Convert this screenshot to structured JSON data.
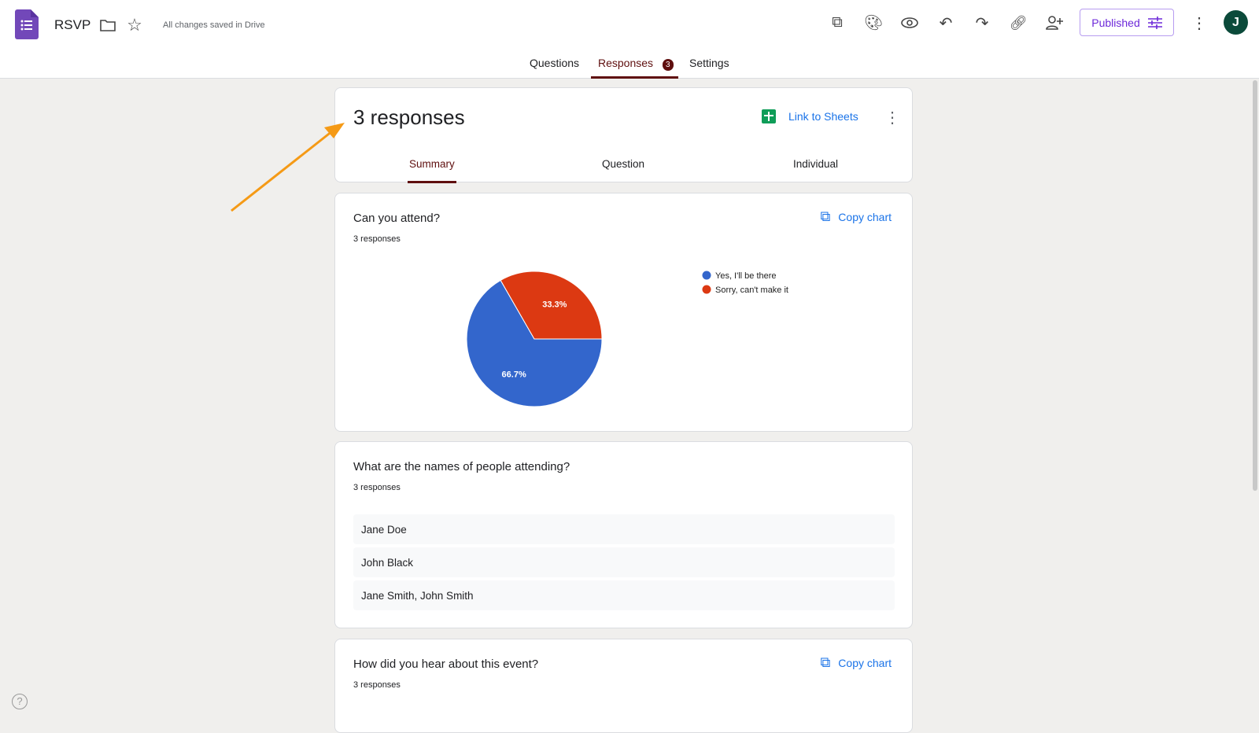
{
  "header": {
    "title": "RSVP",
    "save_status": "All changes saved in Drive",
    "publish_label": "Published",
    "avatar_letter": "J",
    "icons": [
      "add-ons-icon",
      "palette-icon",
      "preview-eye-icon",
      "undo-icon",
      "redo-icon",
      "link-icon",
      "add-collaborator-icon"
    ]
  },
  "tabs": [
    {
      "label": "Questions"
    },
    {
      "label": "Responses",
      "badge": "3",
      "active": true
    },
    {
      "label": "Settings"
    }
  ],
  "summary": {
    "title": "3 responses",
    "link_sheets": "Link to Sheets",
    "subtabs": [
      {
        "label": "Summary",
        "active": true
      },
      {
        "label": "Question"
      },
      {
        "label": "Individual"
      }
    ]
  },
  "q1": {
    "title": "Can you attend?",
    "count": "3 responses",
    "copy": "Copy chart"
  },
  "chart_data": {
    "type": "pie",
    "slices": [
      {
        "label": "Yes, I'll be there",
        "value": 66.7,
        "display": "66.7%",
        "color": "#3366cc"
      },
      {
        "label": "Sorry, can't make it",
        "value": 33.3,
        "display": "33.3%",
        "color": "#dc3912"
      }
    ],
    "legend": "right"
  },
  "q2": {
    "title": "What are the names of people attending?",
    "count": "3 responses",
    "answers": [
      "Jane Doe",
      "John Black",
      "Jane Smith, John Smith"
    ]
  },
  "q3": {
    "title": "How did you hear about this event?",
    "count": "3 responses",
    "copy": "Copy chart"
  },
  "colors": {
    "accent": "#673ab7",
    "active_tab": "#5f0f0f",
    "link": "#1a73e8",
    "annotation_arrow": "#f59a16"
  }
}
